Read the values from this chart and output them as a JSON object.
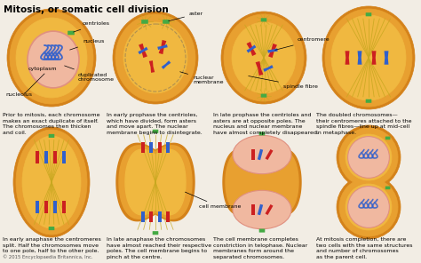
{
  "title": "Mitosis, or somatic cell division",
  "bg": "#f2ede4",
  "outer_dark": "#d4821a",
  "outer_mid": "#e8a030",
  "outer_light": "#f0b840",
  "inner_orange": "#f5c850",
  "nucleus_pink": "#f0b8a0",
  "nucleus_ring": "#e09080",
  "chr_red": "#cc2020",
  "chr_blue": "#3060cc",
  "centriole": "#44aa44",
  "spindle_col": "#c8a820",
  "copyright": "© 2015 Encyclopaedia Britannica, Inc.",
  "captions_top": [
    "Prior to mitosis, each chromosome\nmakes an exact duplicate of itself.\nThe chromosomes then thicken\nand coil.",
    "In early prophase the centrioles,\nwhich have divided, form asters\nand move apart. The nuclear\nmembrane begins to disintegrate.",
    "In late prophase the centrioles and\nasters are at opposite poles. The\nnucleus and nuclear membrane\nhave almost completely disappeared.",
    "The doubled chromosomes—\ntheir centromeres attached to the\nspindle fibres—line up at mid-cell\nin metaphase."
  ],
  "captions_bottom": [
    "In early anaphase the centromeres\nsplit. Half the chromosomes move\nto one pole, half to the other pole.",
    "In late anaphase the chromosomes\nhave almost reached their respective\npoles. The cell membrane begins to\npinch at the centre.",
    "The cell membrane completes\nconstriction in telophase. Nuclear\nmembranes form around the\nseparated chromosomes.",
    "At mitosis completion, there are\ntwo cells with the same structures\nand number of chromosomes\nas the parent cell."
  ]
}
